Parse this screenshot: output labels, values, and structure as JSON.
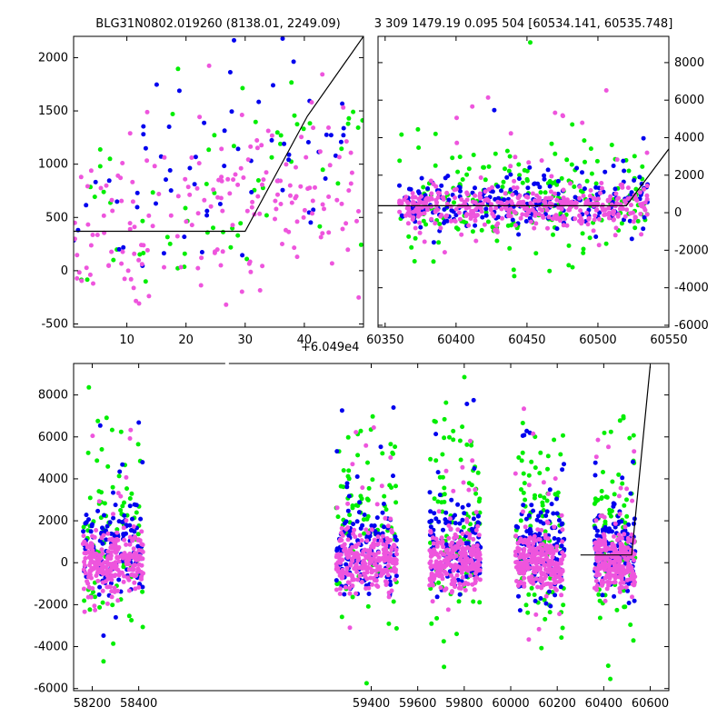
{
  "header": {
    "left_title": "BLG31N0802.019260 (8138.01, 2249.09)",
    "right_title": "3 309 1479.19 0.095 504 [60534.141, 60535.748]",
    "offset_label": "+6.049e4"
  },
  "colors": {
    "green": "#00ee00",
    "blue": "#0000ee",
    "magenta": "#ee55dd",
    "model_line": "#000000"
  },
  "chart_data": [
    {
      "name": "zoom-offset",
      "type": "scatter",
      "title": "BLG31N0802.019260 (8138.01, 2249.09)",
      "xlim": [
        1,
        50
      ],
      "ylim": [
        -530,
        2200
      ],
      "x_offset_label": "+6.049e4",
      "xticks": [
        10,
        20,
        30,
        40
      ],
      "yticks": [
        -500,
        0,
        500,
        1000,
        1500,
        2000
      ],
      "model": {
        "x": [
          1,
          30,
          40.5,
          50
        ],
        "y": [
          370,
          370,
          1450,
          2200
        ]
      },
      "series": [
        {
          "color": "green",
          "n": 70,
          "seed": 11,
          "xr": [
            1,
            50
          ],
          "ymu": 850,
          "ysd": 500,
          "trend": 0.5
        },
        {
          "color": "blue",
          "n": 70,
          "seed": 12,
          "xr": [
            1,
            50
          ],
          "ymu": 900,
          "ysd": 480,
          "trend": 0.5
        },
        {
          "color": "magenta",
          "n": 190,
          "seed": 13,
          "xr": [
            1,
            50
          ],
          "ymu": 500,
          "ysd": 420,
          "trend": 0.4
        }
      ]
    },
    {
      "name": "recent",
      "type": "scatter",
      "title": "3 309 1479.19 0.095 504 [60534.141, 60535.748]",
      "xlim": [
        60345,
        60550
      ],
      "ylim": [
        -6100,
        9400
      ],
      "xticks": [
        60350,
        60400,
        60450,
        60500,
        60550
      ],
      "yticks": [
        -6000,
        -4000,
        -2000,
        0,
        2000,
        4000,
        6000,
        8000
      ],
      "model": {
        "x": [
          60345,
          60520,
          60550
        ],
        "y": [
          370,
          370,
          3400
        ]
      },
      "series": [
        {
          "color": "green",
          "n": 200,
          "seed": 21,
          "xr": [
            60360,
            60535
          ],
          "ymu": 700,
          "ysd": 1400
        },
        {
          "color": "blue",
          "n": 230,
          "seed": 22,
          "xr": [
            60360,
            60535
          ],
          "ymu": 500,
          "ysd": 700
        },
        {
          "color": "magenta",
          "n": 420,
          "seed": 23,
          "xr": [
            60360,
            60535
          ],
          "ymu": 300,
          "ysd": 500
        }
      ]
    },
    {
      "name": "full",
      "type": "scatter",
      "xlim": [
        58120,
        60680
      ],
      "ylim": [
        -6100,
        9500
      ],
      "xticks": [
        58200,
        58400,
        59400,
        59600,
        59800,
        60000,
        60200,
        60400,
        60600
      ],
      "yticks": [
        -6000,
        -4000,
        -2000,
        0,
        2000,
        4000,
        6000,
        8000
      ],
      "model": {
        "x": [
          60300,
          60520,
          60600
        ],
        "y": [
          370,
          370,
          9400
        ]
      },
      "seasons": [
        [
          58160,
          58420
        ],
        [
          59250,
          59510
        ],
        [
          59650,
          59870
        ],
        [
          60020,
          60230
        ],
        [
          60360,
          60535
        ]
      ],
      "series": [
        {
          "color": "green",
          "n_per_season": 90,
          "seed": 31,
          "ymu": 1500,
          "ysd": 2500
        },
        {
          "color": "blue",
          "n_per_season": 130,
          "seed": 32,
          "ymu": 600,
          "ysd": 1100
        },
        {
          "color": "magenta",
          "n_per_season": 260,
          "seed": 33,
          "ymu": 100,
          "ysd": 700
        }
      ]
    }
  ]
}
